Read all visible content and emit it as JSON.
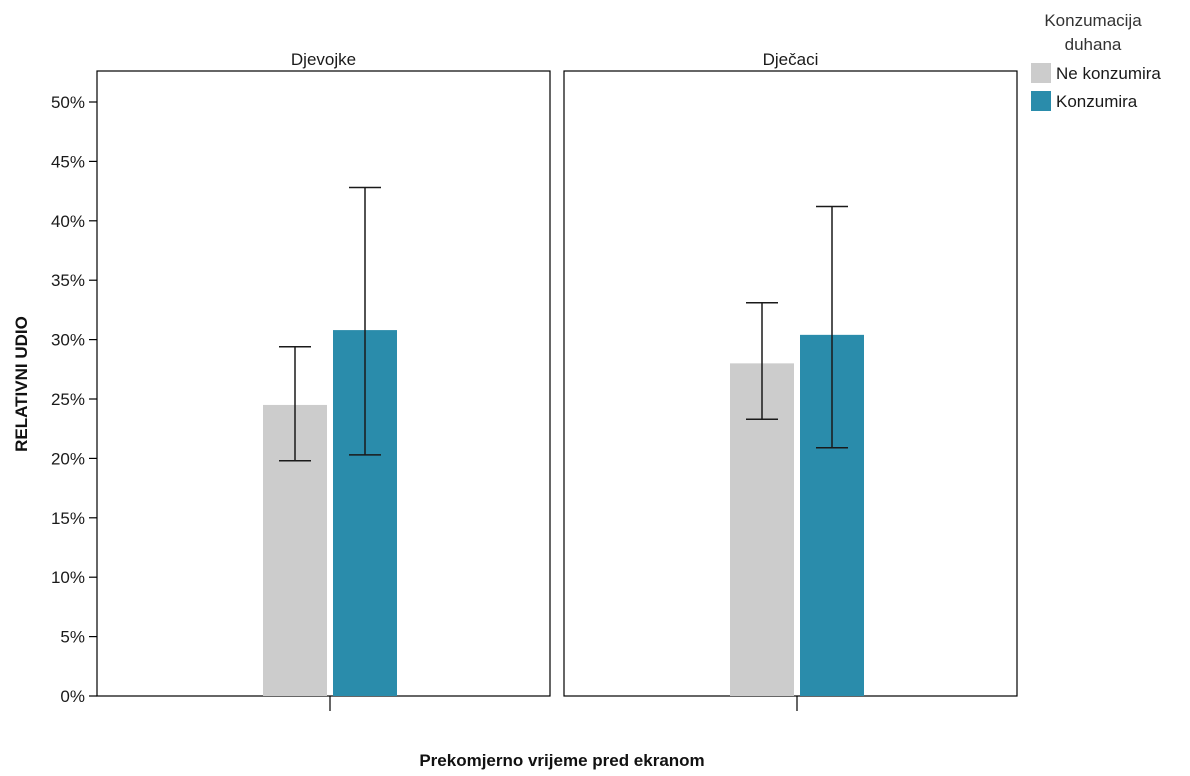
{
  "chart_data": {
    "type": "bar",
    "xlabel": "Prekomjerno vrijeme pred ekranom",
    "ylabel": "RELATIVNI UDIO",
    "ylim": [
      0,
      0.5
    ],
    "yticks": [
      0,
      0.05,
      0.1,
      0.15,
      0.2,
      0.25,
      0.3,
      0.35,
      0.4,
      0.45,
      0.5
    ],
    "ytick_labels": [
      "0%",
      "5%",
      "10%",
      "15%",
      "20%",
      "25%",
      "30%",
      "35%",
      "40%",
      "45%",
      "50%"
    ],
    "grid": false,
    "legend": {
      "title_line1": "Konzumacija",
      "title_line2": "duhana",
      "placement": "top-right",
      "entries": [
        {
          "label": "Ne konzumira",
          "color": "#cccccc"
        },
        {
          "label": "Konzumira",
          "color": "#2a8cab"
        }
      ]
    },
    "panels": [
      {
        "label": "Djevojke",
        "series": [
          {
            "name": "Ne konzumira",
            "value": 0.245,
            "ci": [
              0.198,
              0.294
            ]
          },
          {
            "name": "Konzumira",
            "value": 0.308,
            "ci": [
              0.203,
              0.428
            ]
          }
        ]
      },
      {
        "label": "Dječaci",
        "series": [
          {
            "name": "Ne konzumira",
            "value": 0.28,
            "ci": [
              0.233,
              0.331
            ]
          },
          {
            "name": "Konzumira",
            "value": 0.304,
            "ci": [
              0.209,
              0.412
            ]
          }
        ]
      }
    ],
    "colors": {
      "Ne konzumira": "#cccccc",
      "Konzumira": "#2a8cab",
      "error_bar": "#1a1a1a",
      "frame": "#000000"
    }
  }
}
